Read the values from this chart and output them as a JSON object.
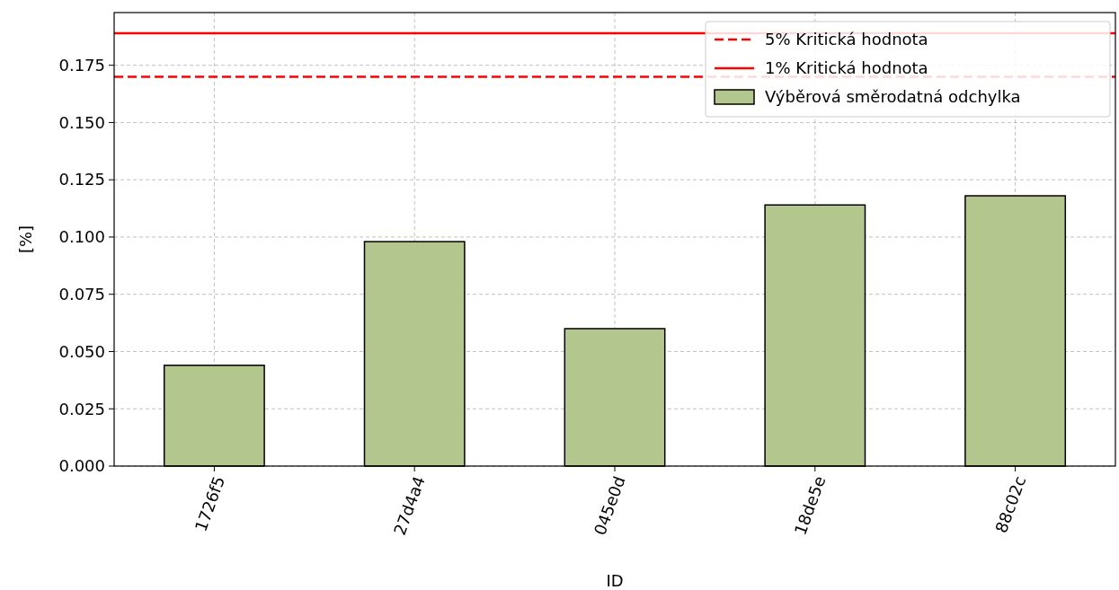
{
  "chart_data": {
    "type": "bar",
    "xlabel": "ID",
    "ylabel": "[%]",
    "categories": [
      "1726f5",
      "27d4a4",
      "045e0d",
      "18de5e",
      "88c02c"
    ],
    "series": [
      {
        "name": "Výběrová směrodatná odchylka",
        "color": "#b3c68e",
        "values": [
          0.044,
          0.098,
          0.06,
          0.114,
          0.118
        ]
      }
    ],
    "ylim": [
      0,
      0.198
    ],
    "yticks": [
      {
        "value": 0,
        "label": "0.000"
      },
      {
        "value": 0.025,
        "label": "0.025"
      },
      {
        "value": 0.05,
        "label": "0.050"
      },
      {
        "value": 0.075,
        "label": "0.075"
      },
      {
        "value": 0.1,
        "label": "0.100"
      },
      {
        "value": 0.125,
        "label": "0.125"
      },
      {
        "value": 0.15,
        "label": "0.150"
      },
      {
        "value": 0.175,
        "label": "0.175"
      }
    ],
    "ref_lines": [
      {
        "axis": "y",
        "value": 0.17,
        "label": "5% Kritická hodnota",
        "color": "#ff0000",
        "line_style": "dashed"
      },
      {
        "axis": "y",
        "value": 0.189,
        "label": "1% Kritická hodnota",
        "color": "#ff0000",
        "line_style": "solid"
      }
    ],
    "grid": true,
    "legend": "top right"
  }
}
